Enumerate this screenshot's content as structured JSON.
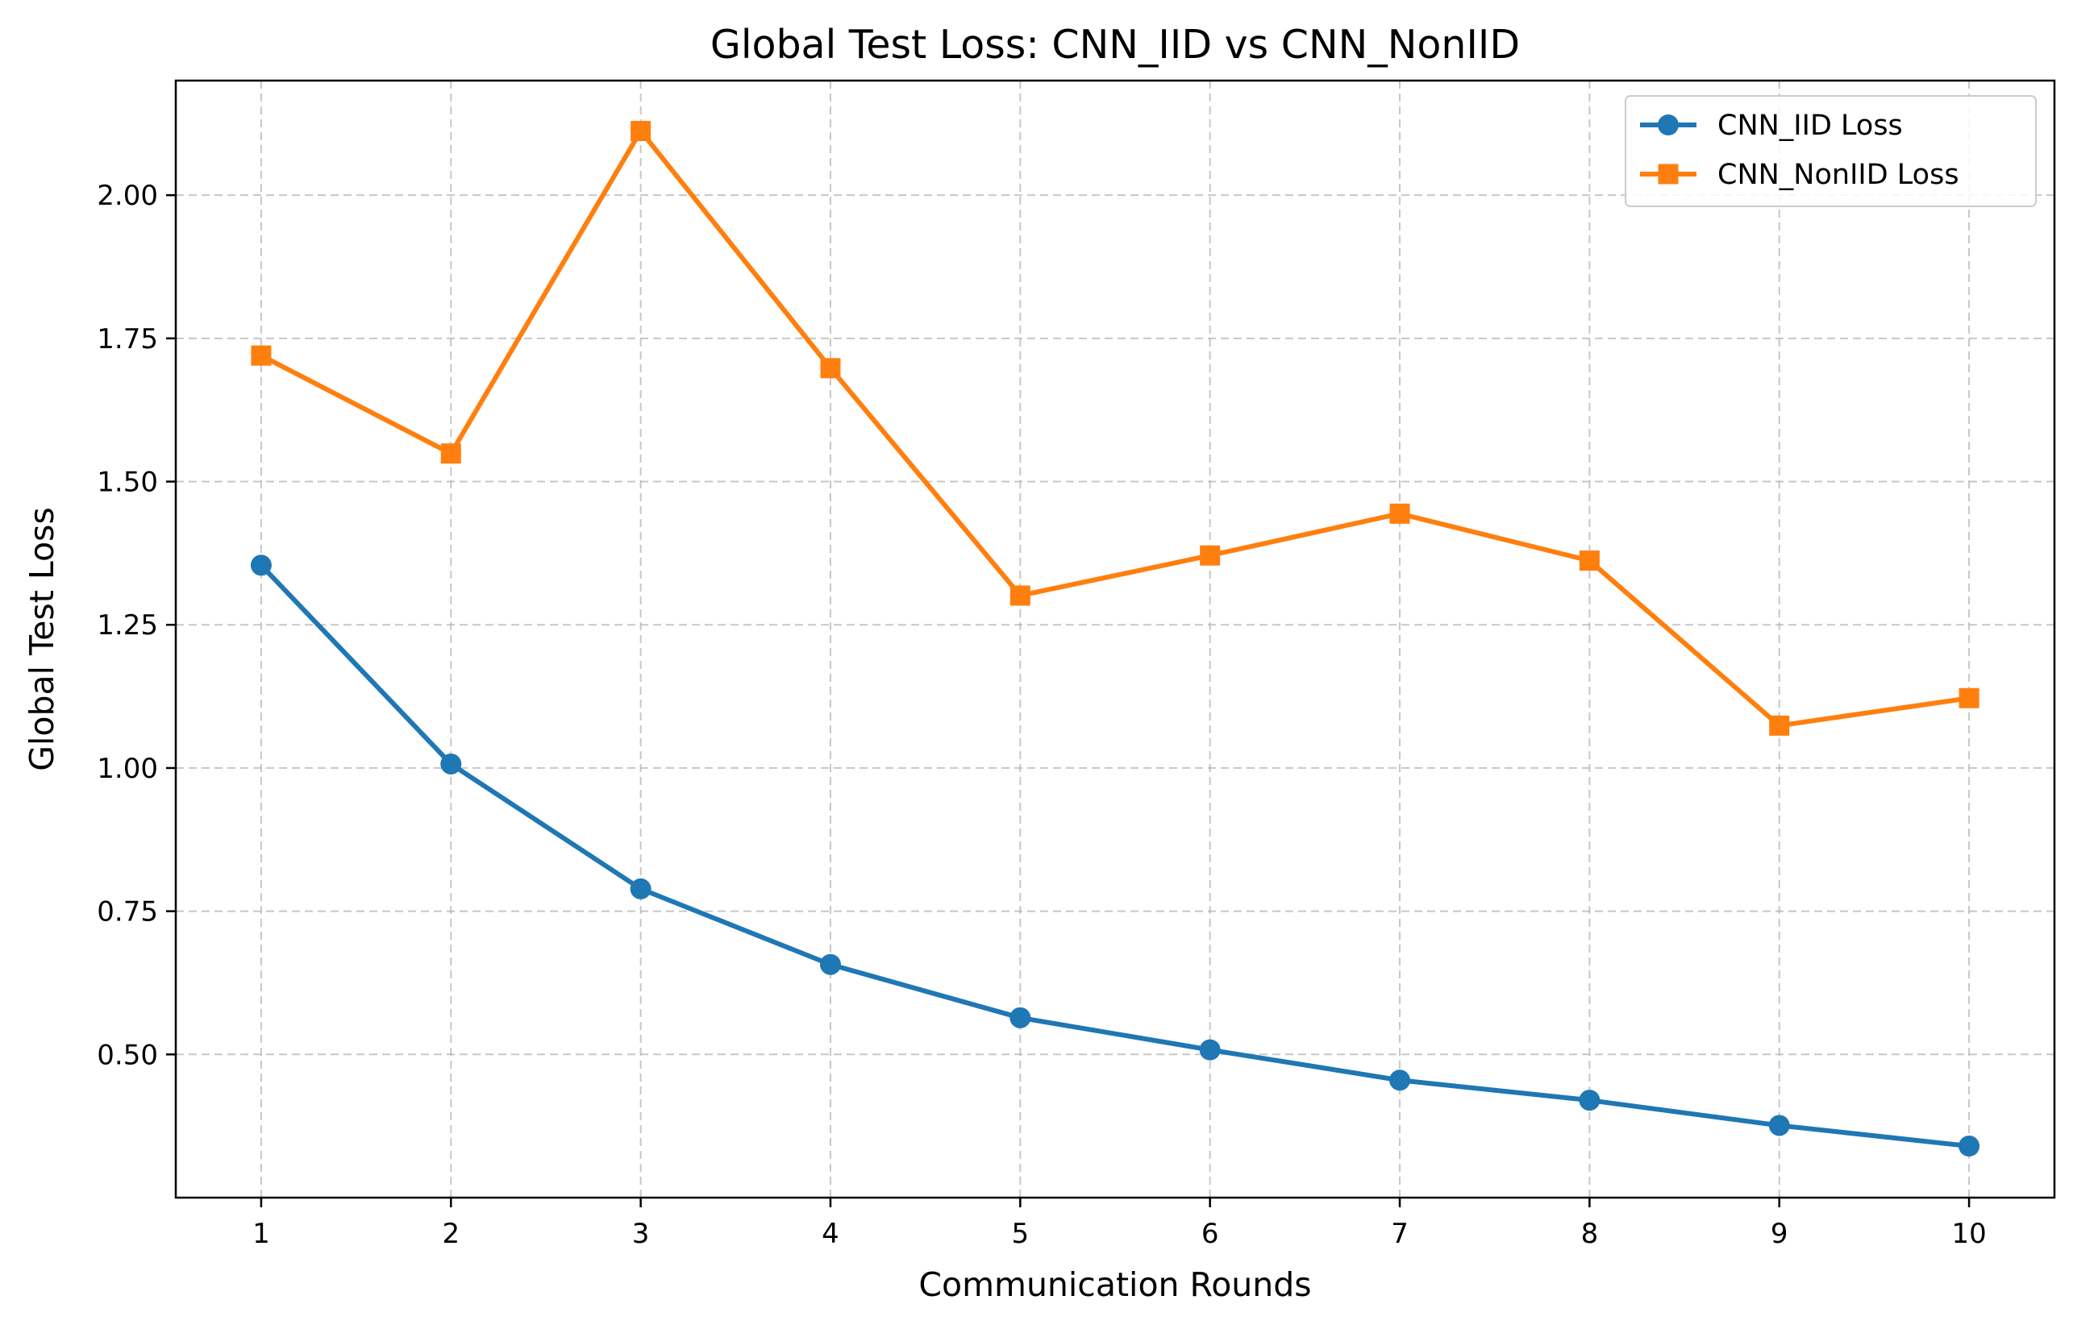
{
  "chart_data": {
    "type": "line",
    "title": "Global Test Loss: CNN_IID vs CNN_NonIID",
    "xlabel": "Communication Rounds",
    "ylabel": "Global Test Loss",
    "x": [
      1,
      2,
      3,
      4,
      5,
      6,
      7,
      8,
      9,
      10
    ],
    "x_ticks": [
      "1",
      "2",
      "3",
      "4",
      "5",
      "6",
      "7",
      "8",
      "9",
      "10"
    ],
    "y_ticks": [
      "0.50",
      "0.75",
      "1.00",
      "1.25",
      "1.50",
      "1.75",
      "2.00"
    ],
    "xlim": [
      0.55,
      10.45
    ],
    "ylim": [
      0.25,
      2.2
    ],
    "grid": true,
    "legend_position": "top-right",
    "series": [
      {
        "name": "CNN_IID Loss",
        "color": "#1f77b4",
        "marker": "circle",
        "values": [
          1.354,
          1.007,
          0.789,
          0.657,
          0.564,
          0.508,
          0.455,
          0.42,
          0.376,
          0.34
        ]
      },
      {
        "name": "CNN_NonIID Loss",
        "color": "#ff7f0e",
        "marker": "square",
        "values": [
          1.72,
          1.549,
          2.112,
          1.698,
          1.301,
          1.371,
          1.444,
          1.362,
          1.074,
          1.122
        ]
      }
    ]
  }
}
